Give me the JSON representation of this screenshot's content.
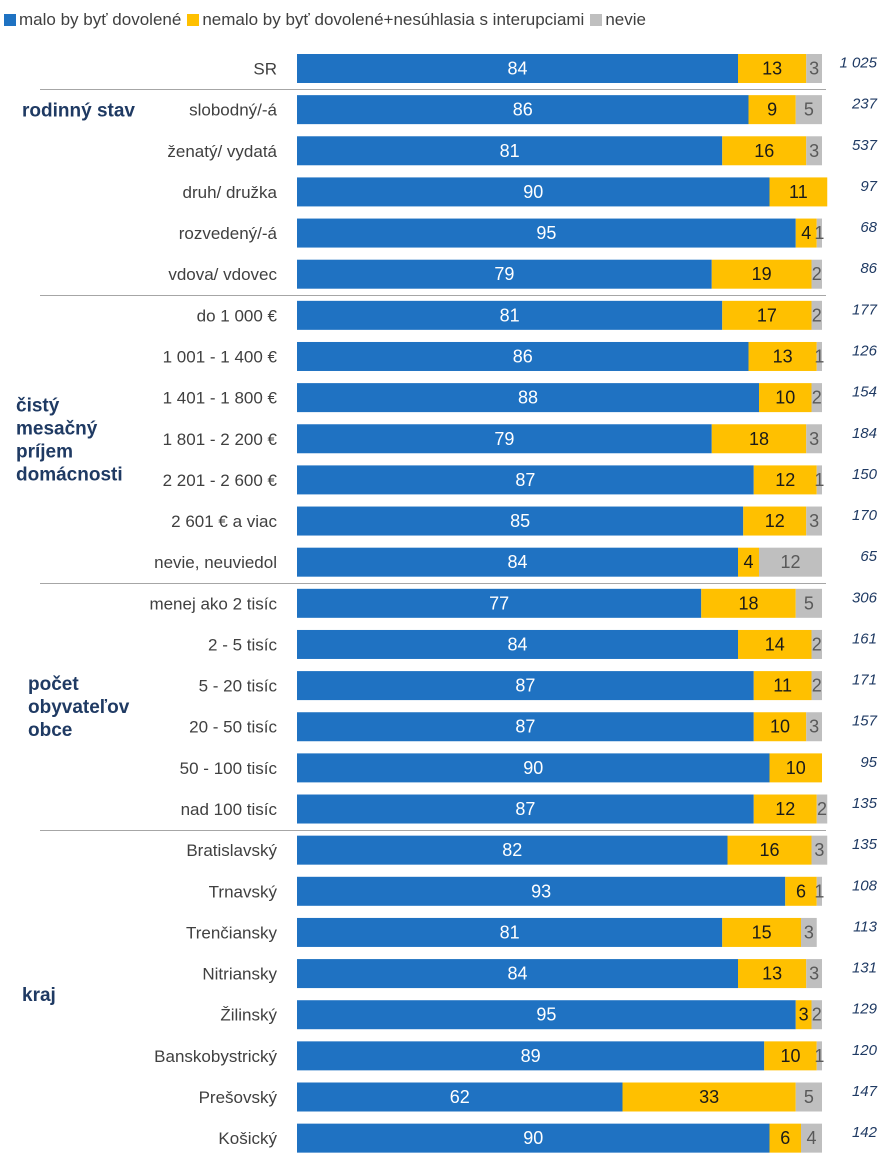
{
  "colors": {
    "allowed": "#1F72C2",
    "not_allowed": "#FFC000",
    "dont_know": "#BFBFBF",
    "label_dark": "#404040",
    "accent_text": "#1F3A63"
  },
  "chart_data": {
    "type": "bar",
    "orientation": "horizontal",
    "stacked": true,
    "xlim": [
      0,
      100
    ],
    "legend_position": "top",
    "grid": false,
    "series": [
      {
        "name": "malo by byť dovolené",
        "color": "#1F72C2",
        "values": [
          84,
          86,
          81,
          90,
          95,
          79,
          81,
          86,
          88,
          79,
          87,
          85,
          84,
          77,
          84,
          87,
          87,
          90,
          87,
          82,
          93,
          81,
          84,
          95,
          89,
          62,
          90
        ]
      },
      {
        "name": "nemalo by byť dovolené+nesúhlasia s interupciami",
        "color": "#FFC000",
        "values": [
          13,
          9,
          16,
          11,
          4,
          19,
          17,
          13,
          10,
          18,
          12,
          12,
          4,
          18,
          14,
          11,
          10,
          10,
          12,
          16,
          6,
          15,
          13,
          3,
          10,
          33,
          6
        ]
      },
      {
        "name": "nevie",
        "color": "#BFBFBF",
        "values": [
          3,
          5,
          3,
          0,
          1,
          2,
          2,
          1,
          2,
          3,
          1,
          3,
          12,
          5,
          2,
          2,
          3,
          0,
          2,
          3,
          1,
          3,
          3,
          2,
          1,
          5,
          4
        ]
      }
    ],
    "labels": [
      [
        "84",
        "13",
        "3"
      ],
      [
        "86",
        "9",
        "5"
      ],
      [
        "81",
        "16",
        "3"
      ],
      [
        "90",
        "11",
        ""
      ],
      [
        "95",
        "4",
        "1"
      ],
      [
        "79",
        "19",
        "2"
      ],
      [
        "81",
        "17",
        "2"
      ],
      [
        "86",
        "13",
        "1"
      ],
      [
        "88",
        "10",
        "2"
      ],
      [
        "79",
        "18",
        "3"
      ],
      [
        "87",
        "12",
        "1"
      ],
      [
        "85",
        "12",
        "3"
      ],
      [
        "84",
        "4",
        "12"
      ],
      [
        "77",
        "18",
        "5"
      ],
      [
        "84",
        "14",
        "2"
      ],
      [
        "87",
        "11",
        "2"
      ],
      [
        "87",
        "10",
        "3"
      ],
      [
        "90",
        "10",
        ""
      ],
      [
        "87",
        "12",
        "2"
      ],
      [
        "82",
        "16",
        "3"
      ],
      [
        "93",
        "6",
        "1"
      ],
      [
        "81",
        "15",
        "3"
      ],
      [
        "84",
        "13",
        "3"
      ],
      [
        "95",
        "3",
        "2"
      ],
      [
        "89",
        "10",
        "1"
      ],
      [
        "62",
        "33",
        "5"
      ],
      [
        "90",
        "6",
        "4"
      ]
    ],
    "categories": [
      "SR",
      "slobodný/-á",
      "ženatý/ vydatá",
      "druh/ družka",
      "rozvedený/-á",
      "vdova/ vdovec",
      "do 1 000 €",
      "1 001 - 1 400 €",
      "1 401 - 1 800 €",
      "1 801 - 2 200 €",
      "2 201 - 2 600 €",
      "2 601 € a viac",
      "nevie, neuviedol",
      "menej ako 2 tisíc",
      "2 - 5 tisíc",
      "5 - 20 tisíc",
      "20 - 50 tisíc",
      "50 - 100 tisíc",
      "nad 100 tisíc",
      "Bratislavský",
      "Trnavský",
      "Trenčiansky",
      "Nitriansky",
      "Žilinský",
      "Banskobystrický",
      "Prešovský",
      "Košický"
    ],
    "n": [
      "1 025",
      "237",
      "537",
      "97",
      "68",
      "86",
      "177",
      "126",
      "154",
      "184",
      "150",
      "170",
      "65",
      "306",
      "161",
      "171",
      "157",
      "95",
      "135",
      "135",
      "108",
      "113",
      "131",
      "129",
      "120",
      "147",
      "142"
    ],
    "groups": [
      {
        "lines": [
          "rodinný stav"
        ],
        "start": 1,
        "end": 5
      },
      {
        "lines": [
          "čistý",
          "mesačný",
          "príjem",
          "domácnosti"
        ],
        "start": 6,
        "end": 12
      },
      {
        "lines": [
          "počet",
          "obyvateľov",
          "obce"
        ],
        "start": 13,
        "end": 18
      },
      {
        "lines": [
          "kraj"
        ],
        "start": 19,
        "end": 26
      }
    ]
  }
}
